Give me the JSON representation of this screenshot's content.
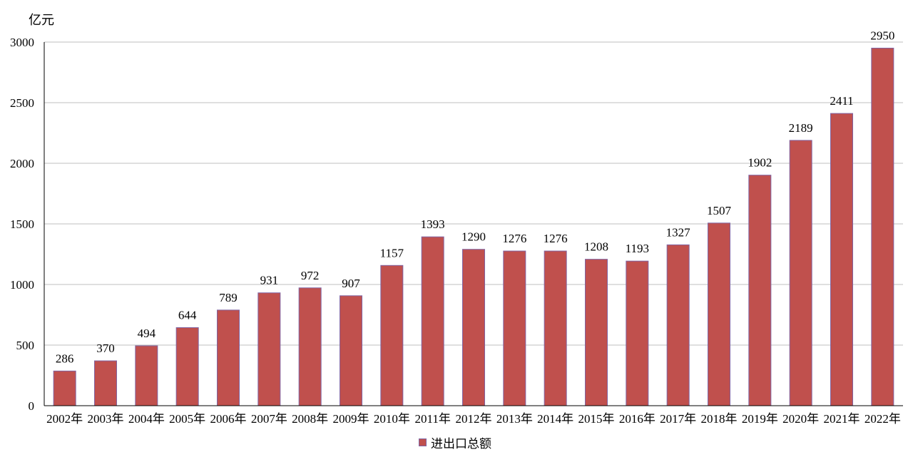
{
  "chart_data": {
    "type": "bar",
    "unit_label": "亿元",
    "categories": [
      "2002年",
      "2003年",
      "2004年",
      "2005年",
      "2006年",
      "2007年",
      "2008年",
      "2009年",
      "2010年",
      "2011年",
      "2012年",
      "2013年",
      "2014年",
      "2015年",
      "2016年",
      "2017年",
      "2018年",
      "2019年",
      "2020年",
      "2021年",
      "2022年"
    ],
    "series": [
      {
        "name": "进出口总额",
        "color": "#c0504d",
        "border_color": "#8064a2",
        "values": [
          286,
          370,
          494,
          644,
          789,
          931,
          972,
          907,
          1157,
          1393,
          1290,
          1276,
          1276,
          1208,
          1193,
          1327,
          1507,
          1902,
          2189,
          2411,
          2950
        ]
      }
    ],
    "y_ticks": [
      0,
      500,
      1000,
      1500,
      2000,
      2500,
      3000
    ],
    "ylim": [
      0,
      3000
    ],
    "grid": true,
    "legend_position": "bottom"
  }
}
